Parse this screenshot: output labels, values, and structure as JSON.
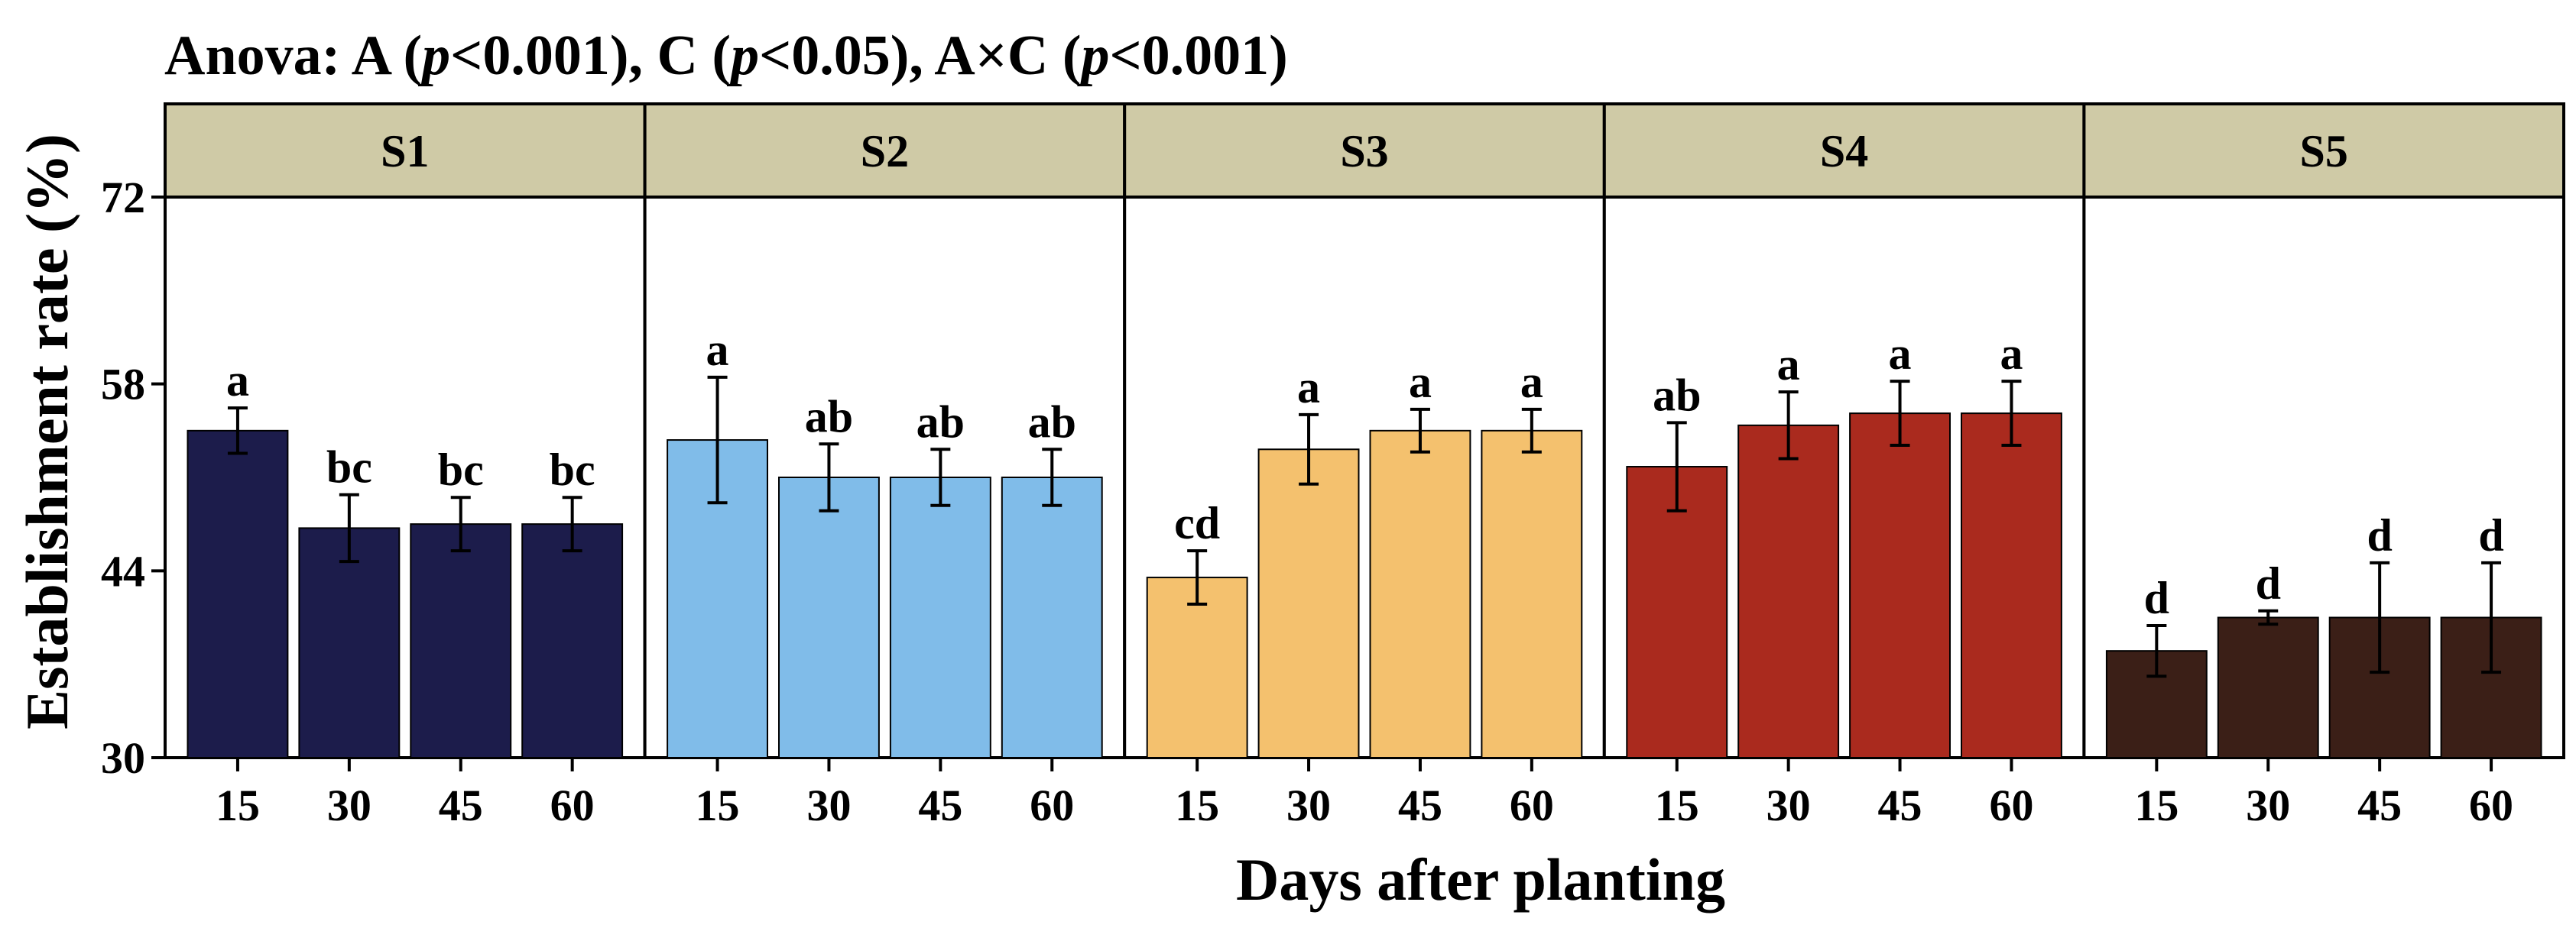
{
  "chart_data": {
    "type": "bar",
    "title_parts": [
      {
        "text": "Anova: A (",
        "italic": false
      },
      {
        "text": "p",
        "italic": true
      },
      {
        "text": "<0.001), C (",
        "italic": false
      },
      {
        "text": "p",
        "italic": true
      },
      {
        "text": "<0.05), A×C (",
        "italic": false
      },
      {
        "text": "p",
        "italic": true
      },
      {
        "text": "<0.001)",
        "italic": false
      }
    ],
    "xlabel": "Days after planting",
    "ylabel": "Establishment rate (%)",
    "ylim": [
      30,
      72
    ],
    "yticks": [
      30,
      44,
      58,
      72
    ],
    "categories": [
      "15",
      "30",
      "45",
      "60"
    ],
    "series": [
      {
        "name": "S1",
        "color": "#1c1c4b",
        "values": [
          54.5,
          47.2,
          47.5,
          47.5
        ],
        "errors": [
          1.7,
          2.5,
          2.0,
          2.0
        ],
        "letters": [
          "a",
          "bc",
          "bc",
          "bc"
        ]
      },
      {
        "name": "S2",
        "color": "#80bce9",
        "values": [
          53.8,
          51.0,
          51.0,
          51.0
        ],
        "errors": [
          4.7,
          2.5,
          2.1,
          2.1
        ],
        "letters": [
          "a",
          "ab",
          "ab",
          "ab"
        ]
      },
      {
        "name": "S3",
        "color": "#f4c16e",
        "values": [
          43.5,
          53.1,
          54.5,
          54.5
        ],
        "errors": [
          2.0,
          2.6,
          1.6,
          1.6
        ],
        "letters": [
          "cd",
          "a",
          "a",
          "a"
        ]
      },
      {
        "name": "S4",
        "color": "#aa2a1e",
        "values": [
          51.8,
          54.9,
          55.8,
          55.8
        ],
        "errors": [
          3.3,
          2.5,
          2.4,
          2.4
        ],
        "letters": [
          "ab",
          "a",
          "a",
          "a"
        ]
      },
      {
        "name": "S5",
        "color": "#3b1f17",
        "values": [
          38.0,
          40.5,
          40.5,
          40.5
        ],
        "errors": [
          1.9,
          0.5,
          4.1,
          4.1
        ],
        "letters": [
          "d",
          "d",
          "d",
          "d"
        ]
      }
    ]
  }
}
